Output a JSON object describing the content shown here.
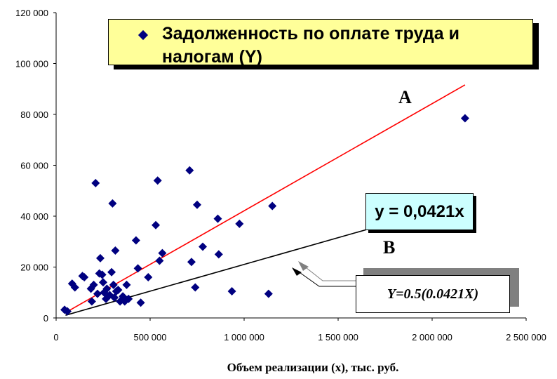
{
  "chart_data": {
    "type": "scatter",
    "xlabel": "Объем реализации (x), тыс. руб.",
    "ylabel": "",
    "xlim": [
      0,
      2500000
    ],
    "ylim": [
      0,
      120000
    ],
    "x_ticks": [
      "0",
      "500 000",
      "1 000 000",
      "1 500 000",
      "2 000 000",
      "2 500 000"
    ],
    "y_ticks": [
      "0",
      "20 000",
      "40 000",
      "60 000",
      "80 000",
      "100 000",
      "120 000"
    ],
    "legend": {
      "label": "Задолженность по оплате труда и налогам (Y)",
      "placement": "top"
    },
    "series": [
      {
        "name": "Задолженность по оплате труда и налогам (Y)",
        "color": "#000080",
        "marker": "diamond",
        "points": [
          [
            45000,
            3200
          ],
          [
            60000,
            2600
          ],
          [
            85000,
            13500
          ],
          [
            100000,
            12000
          ],
          [
            140000,
            16500
          ],
          [
            150000,
            16000
          ],
          [
            185000,
            11500
          ],
          [
            200000,
            13000
          ],
          [
            190000,
            6500
          ],
          [
            210000,
            53000
          ],
          [
            220000,
            9500
          ],
          [
            230000,
            17500
          ],
          [
            235000,
            23500
          ],
          [
            245000,
            17000
          ],
          [
            250000,
            14000
          ],
          [
            255000,
            10000
          ],
          [
            265000,
            7500
          ],
          [
            270000,
            11500
          ],
          [
            285000,
            9000
          ],
          [
            295000,
            18000
          ],
          [
            300000,
            45000
          ],
          [
            305000,
            13000
          ],
          [
            310000,
            8000
          ],
          [
            315000,
            26500
          ],
          [
            320000,
            10500
          ],
          [
            330000,
            11000
          ],
          [
            340000,
            6500
          ],
          [
            355000,
            8500
          ],
          [
            365000,
            6500
          ],
          [
            375000,
            13000
          ],
          [
            385000,
            7500
          ],
          [
            425000,
            30500
          ],
          [
            435000,
            19500
          ],
          [
            450000,
            6000
          ],
          [
            490000,
            16000
          ],
          [
            530000,
            36500
          ],
          [
            540000,
            54000
          ],
          [
            550000,
            22500
          ],
          [
            565000,
            25500
          ],
          [
            710000,
            58000
          ],
          [
            720000,
            22000
          ],
          [
            740000,
            12000
          ],
          [
            750000,
            44500
          ],
          [
            780000,
            28000
          ],
          [
            860000,
            39000
          ],
          [
            865000,
            25000
          ],
          [
            975000,
            37000
          ],
          [
            935000,
            10500
          ],
          [
            1130000,
            9500
          ],
          [
            1150000,
            44000
          ],
          [
            2175000,
            78500
          ]
        ]
      }
    ],
    "lines": [
      {
        "label": "A",
        "color": "#ff0000",
        "from": [
          50000,
          2100
        ],
        "to": [
          2175000,
          91600
        ]
      },
      {
        "label": "B",
        "color": "#000000",
        "from": [
          50000,
          1050
        ],
        "to": [
          1650000,
          34700
        ]
      }
    ],
    "annotations": [
      {
        "text": "y = 0,0421x",
        "background": "#ccffff"
      },
      {
        "text": "Y=0.5(0.0421X)"
      }
    ]
  }
}
